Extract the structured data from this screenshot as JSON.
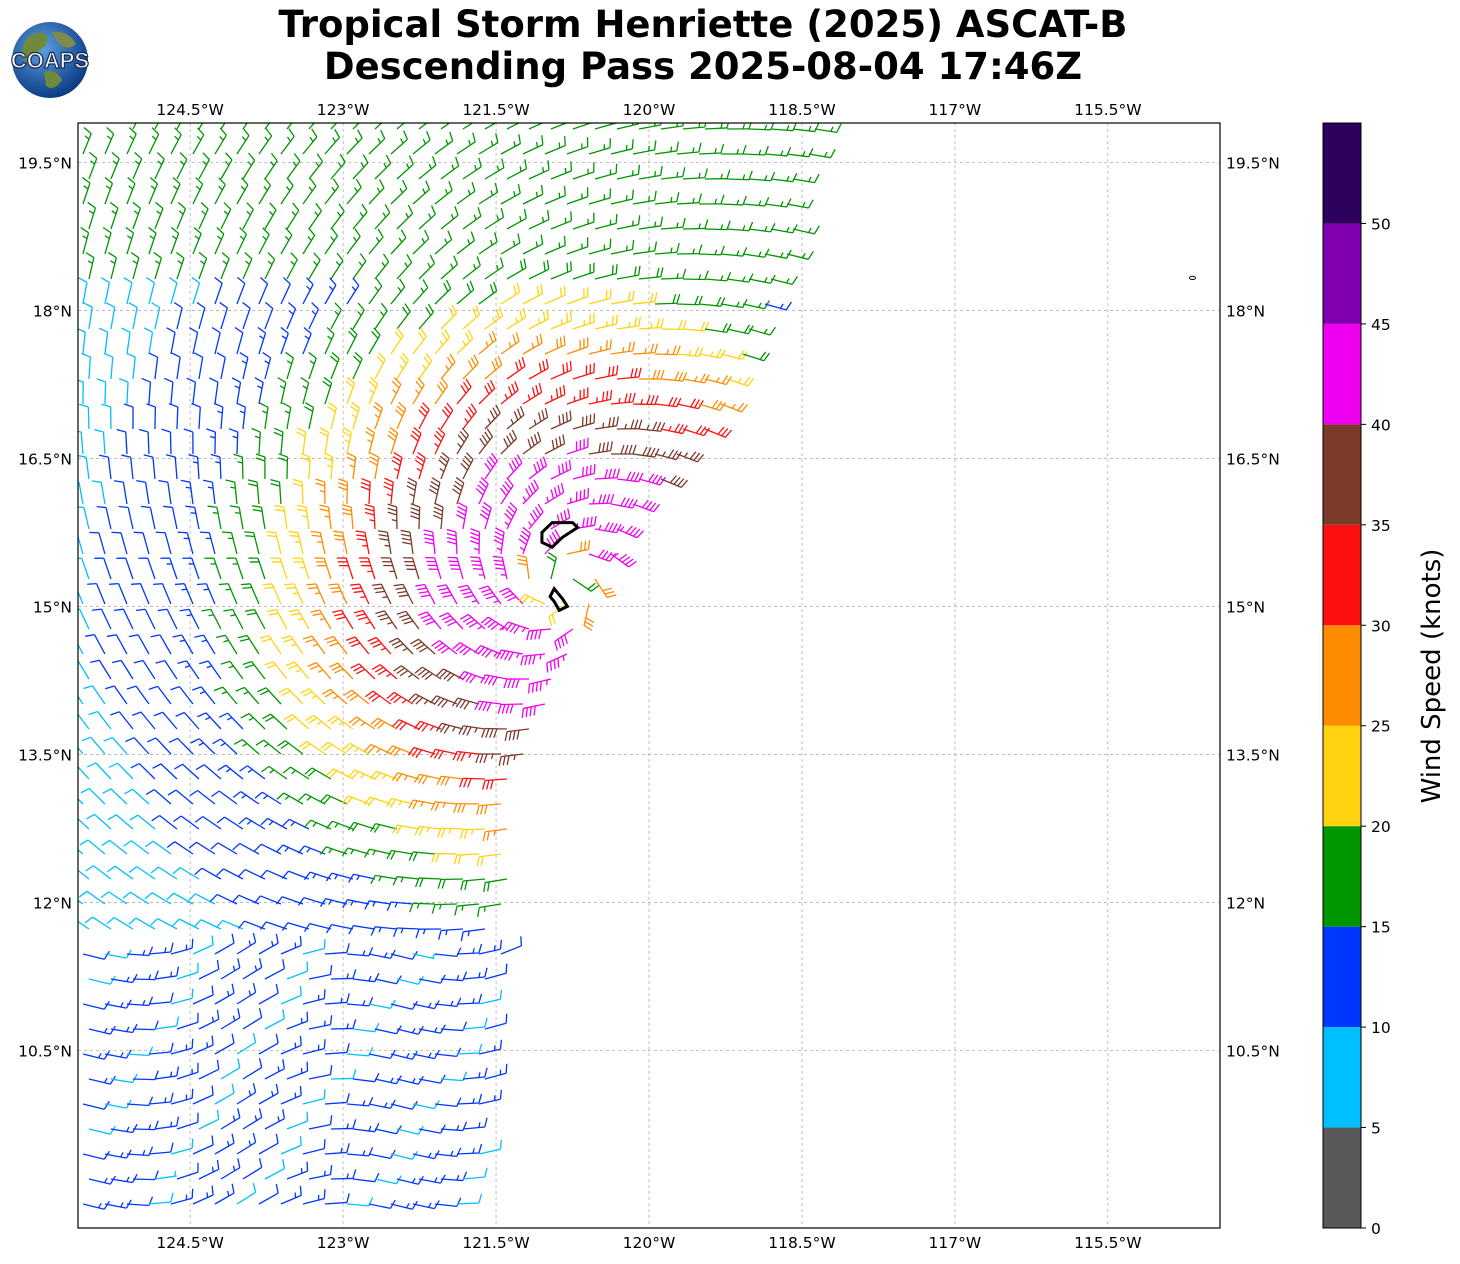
{
  "title": {
    "line1": "Tropical Storm Henriette (2025) ASCAT-B",
    "line2": "Descending Pass 2025-08-04 17:46Z"
  },
  "logo": {
    "text": "COAPS",
    "icon": "globe-logo-icon"
  },
  "map": {
    "projection": "PlateCarree",
    "lon_range": [
      -125.6,
      -114.4
    ],
    "lat_range": [
      8.7,
      19.9
    ],
    "gridlines": true,
    "lon_ticks": [
      {
        "value": -124.5,
        "label": "124.5°W"
      },
      {
        "value": -123,
        "label": "123°W"
      },
      {
        "value": -121.5,
        "label": "121.5°W"
      },
      {
        "value": -120,
        "label": "120°W"
      },
      {
        "value": -118.5,
        "label": "118.5°W"
      },
      {
        "value": -117,
        "label": "117°W"
      },
      {
        "value": -115.5,
        "label": "115.5°W"
      }
    ],
    "lat_ticks": [
      {
        "value": 19.5,
        "label": "19.5°N"
      },
      {
        "value": 18,
        "label": "18°N"
      },
      {
        "value": 16.5,
        "label": "16.5°N"
      },
      {
        "value": 15,
        "label": "15°N"
      },
      {
        "value": 13.5,
        "label": "13.5°N"
      },
      {
        "value": 12,
        "label": "12°N"
      },
      {
        "value": 10.5,
        "label": "10.5°N"
      }
    ],
    "storm_center": {
      "lon": -120.85,
      "lat": 15.2
    },
    "rain_contours": [
      {
        "points": [
          [
            -121.05,
            15.75
          ],
          [
            -120.95,
            15.85
          ],
          [
            -120.75,
            15.85
          ],
          [
            -120.7,
            15.8
          ],
          [
            -120.85,
            15.7
          ],
          [
            -120.95,
            15.6
          ],
          [
            -121.05,
            15.65
          ]
        ]
      },
      {
        "points": [
          [
            -120.93,
            15.18
          ],
          [
            -120.85,
            15.08
          ],
          [
            -120.8,
            15.0
          ],
          [
            -120.88,
            14.96
          ],
          [
            -120.93,
            15.05
          ],
          [
            -120.97,
            15.1
          ]
        ]
      }
    ],
    "small_island": {
      "lon": -114.67,
      "lat": 18.33
    }
  },
  "colorbar": {
    "label": "Wind Speed (knots)",
    "range": [
      0,
      55
    ],
    "bins": [
      {
        "min": 0,
        "max": 5,
        "color": "#595959"
      },
      {
        "min": 5,
        "max": 10,
        "color": "#00bfff"
      },
      {
        "min": 10,
        "max": 15,
        "color": "#0037ff"
      },
      {
        "min": 15,
        "max": 20,
        "color": "#009600"
      },
      {
        "min": 20,
        "max": 25,
        "color": "#ffd30f"
      },
      {
        "min": 25,
        "max": 30,
        "color": "#ff8c00"
      },
      {
        "min": 30,
        "max": 35,
        "color": "#ff1010"
      },
      {
        "min": 35,
        "max": 40,
        "color": "#7b3a2a"
      },
      {
        "min": 40,
        "max": 45,
        "color": "#f000f0"
      },
      {
        "min": 45,
        "max": 50,
        "color": "#8000b0"
      },
      {
        "min": 50,
        "max": 55,
        "color": "#2d005e"
      }
    ],
    "ticks": [
      0,
      5,
      10,
      15,
      20,
      25,
      30,
      35,
      40,
      45,
      50
    ]
  },
  "swath": {
    "note_free": true,
    "polygon": [
      [
        -125.6,
        19.6
      ],
      [
        -123.6,
        20.5
      ],
      [
        -118.0,
        20.5
      ],
      [
        -118.9,
        17.8
      ],
      [
        -119.5,
        16.6
      ],
      [
        -120.3,
        15.6
      ],
      [
        -121.2,
        13.3
      ],
      [
        -121.3,
        12.6
      ],
      [
        -121.5,
        10.8
      ],
      [
        -121.7,
        9.0
      ],
      [
        -121.8,
        8.7
      ],
      [
        -125.6,
        8.7
      ]
    ]
  }
}
